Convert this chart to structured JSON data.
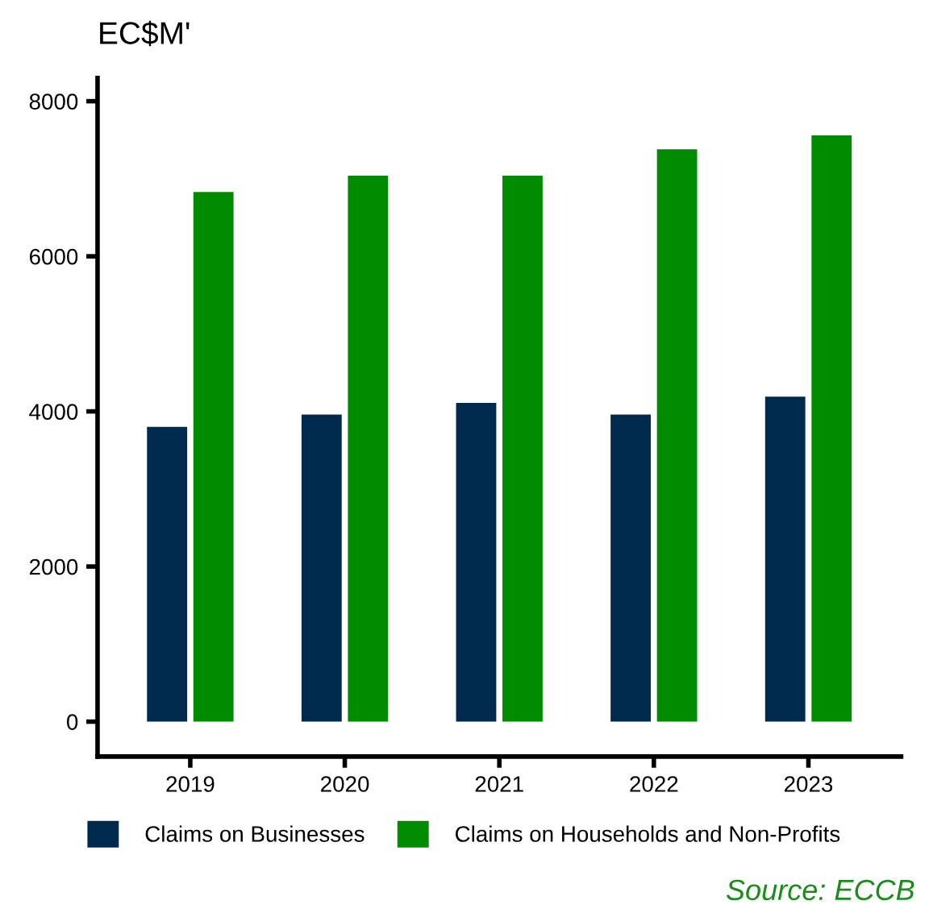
{
  "chart_data": {
    "type": "bar",
    "ylabel": "EC$M'",
    "categories": [
      "2019",
      "2020",
      "2021",
      "2022",
      "2023"
    ],
    "series": [
      {
        "name": "Claims on Businesses",
        "color": "#002a4d",
        "values": [
          3800,
          3960,
          4110,
          3960,
          4190
        ]
      },
      {
        "name": "Claims on Households and Non-Profits",
        "color": "#008c00",
        "values": [
          6830,
          7040,
          7040,
          7380,
          7560
        ]
      }
    ],
    "ylim": [
      -450,
      8300
    ],
    "yticks": [
      0,
      2000,
      4000,
      6000,
      8000
    ],
    "grid": false,
    "legend": "bottom",
    "annotations": [
      "Source: ECCB"
    ]
  }
}
